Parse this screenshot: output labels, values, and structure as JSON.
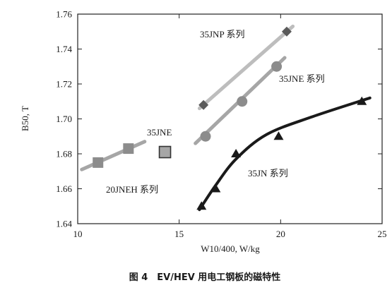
{
  "chart_data": {
    "type": "scatter",
    "title": "",
    "xlabel": "W10/400, W/kg",
    "ylabel": "B50, T",
    "xlim": [
      10,
      25
    ],
    "ylim": [
      1.64,
      1.76
    ],
    "xticks": [
      "10",
      "15",
      "20",
      "25"
    ],
    "yticks": [
      "1.64",
      "1.66",
      "1.68",
      "1.70",
      "1.72",
      "1.74",
      "1.76"
    ],
    "grid": false,
    "series": [
      {
        "name": "35JNP 系列",
        "marker": "diamond",
        "color": "#5a5a5a",
        "line_color": "#bdbdbd",
        "x": [
          16.2,
          20.3
        ],
        "y": [
          1.708,
          1.75
        ],
        "trend": {
          "x": [
            16.0,
            20.6
          ],
          "y": [
            1.706,
            1.753
          ]
        }
      },
      {
        "name": "35JNE 系列",
        "marker": "circle",
        "color": "#8c8c8c",
        "line_color": "#a6a6a6",
        "x": [
          16.3,
          18.1,
          19.8
        ],
        "y": [
          1.69,
          1.71,
          1.73
        ],
        "trend": {
          "x": [
            15.8,
            20.2
          ],
          "y": [
            1.686,
            1.735
          ]
        }
      },
      {
        "name": "20JNEH 系列",
        "marker": "square",
        "color": "#8c8c8c",
        "line_color": "#a6a6a6",
        "x": [
          11.0,
          12.5
        ],
        "y": [
          1.675,
          1.683
        ],
        "trend": {
          "x": [
            10.2,
            13.3
          ],
          "y": [
            1.671,
            1.687
          ]
        }
      },
      {
        "name": "35JNE",
        "marker": "square-outline",
        "color": "#a6a6a6",
        "x": [
          14.3
        ],
        "y": [
          1.681
        ]
      },
      {
        "name": "35JN 系列",
        "marker": "triangle",
        "color": "#1a1a1a",
        "line_color": "#1a1a1a",
        "x": [
          16.1,
          16.8,
          17.8,
          19.9,
          24.0
        ],
        "y": [
          1.65,
          1.66,
          1.68,
          1.69,
          1.71
        ],
        "trend": {
          "x": [
            16.0,
            16.8,
            17.8,
            19.3,
            21.5,
            24.4
          ],
          "y": [
            1.648,
            1.662,
            1.677,
            1.691,
            1.701,
            1.712
          ]
        }
      }
    ],
    "annotations": [
      "35JNP 系列",
      "35JNE 系列",
      "35JNE",
      "35JN 系列",
      "20JNEH 系列"
    ]
  },
  "caption": "图 4　EV/HEV 用电工钢板的磁特性"
}
